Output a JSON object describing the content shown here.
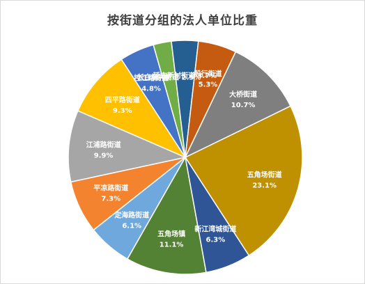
{
  "chart_data": {
    "type": "pie",
    "title": "按街道分组的法人单位比重",
    "start_angle_deg": -26,
    "direction": "clockwise",
    "slices": [
      {
        "name": "五角场街道",
        "value": 23.1,
        "label": "23.1%",
        "color": "#bf9000"
      },
      {
        "name": "新江湾城街道",
        "value": 6.3,
        "label": "6.3%",
        "color": "#2f5597"
      },
      {
        "name": "五角场镇",
        "value": 11.1,
        "label": "11.1%",
        "color": "#548235"
      },
      {
        "name": "定海路街道",
        "value": 6.1,
        "label": "6.1%",
        "color": "#6fa8dc"
      },
      {
        "name": "平凉路街道",
        "value": 7.3,
        "label": "7.3%",
        "color": "#f4832f"
      },
      {
        "name": "江浦路街道",
        "value": 9.9,
        "label": "9.9%",
        "color": "#a6a6a6"
      },
      {
        "name": "四平路街道",
        "value": 9.3,
        "label": "9.3%",
        "color": "#ffc000"
      },
      {
        "name": "控江路街道",
        "value": 4.8,
        "label": "4.8%",
        "color": "#4472c4"
      },
      {
        "name": "长白新村街道",
        "value": 2.5,
        "label": "2.5%",
        "color": "#70ad47"
      },
      {
        "name": "延吉新村街道",
        "value": 3.7,
        "label": "3.7%",
        "color": "#255e91"
      },
      {
        "name": "殷行街道",
        "value": 5.3,
        "label": "5.3%",
        "color": "#c55a11"
      },
      {
        "name": "大桥街道",
        "value": 10.7,
        "label": "10.7%",
        "color": "#7f7f7f"
      }
    ]
  }
}
